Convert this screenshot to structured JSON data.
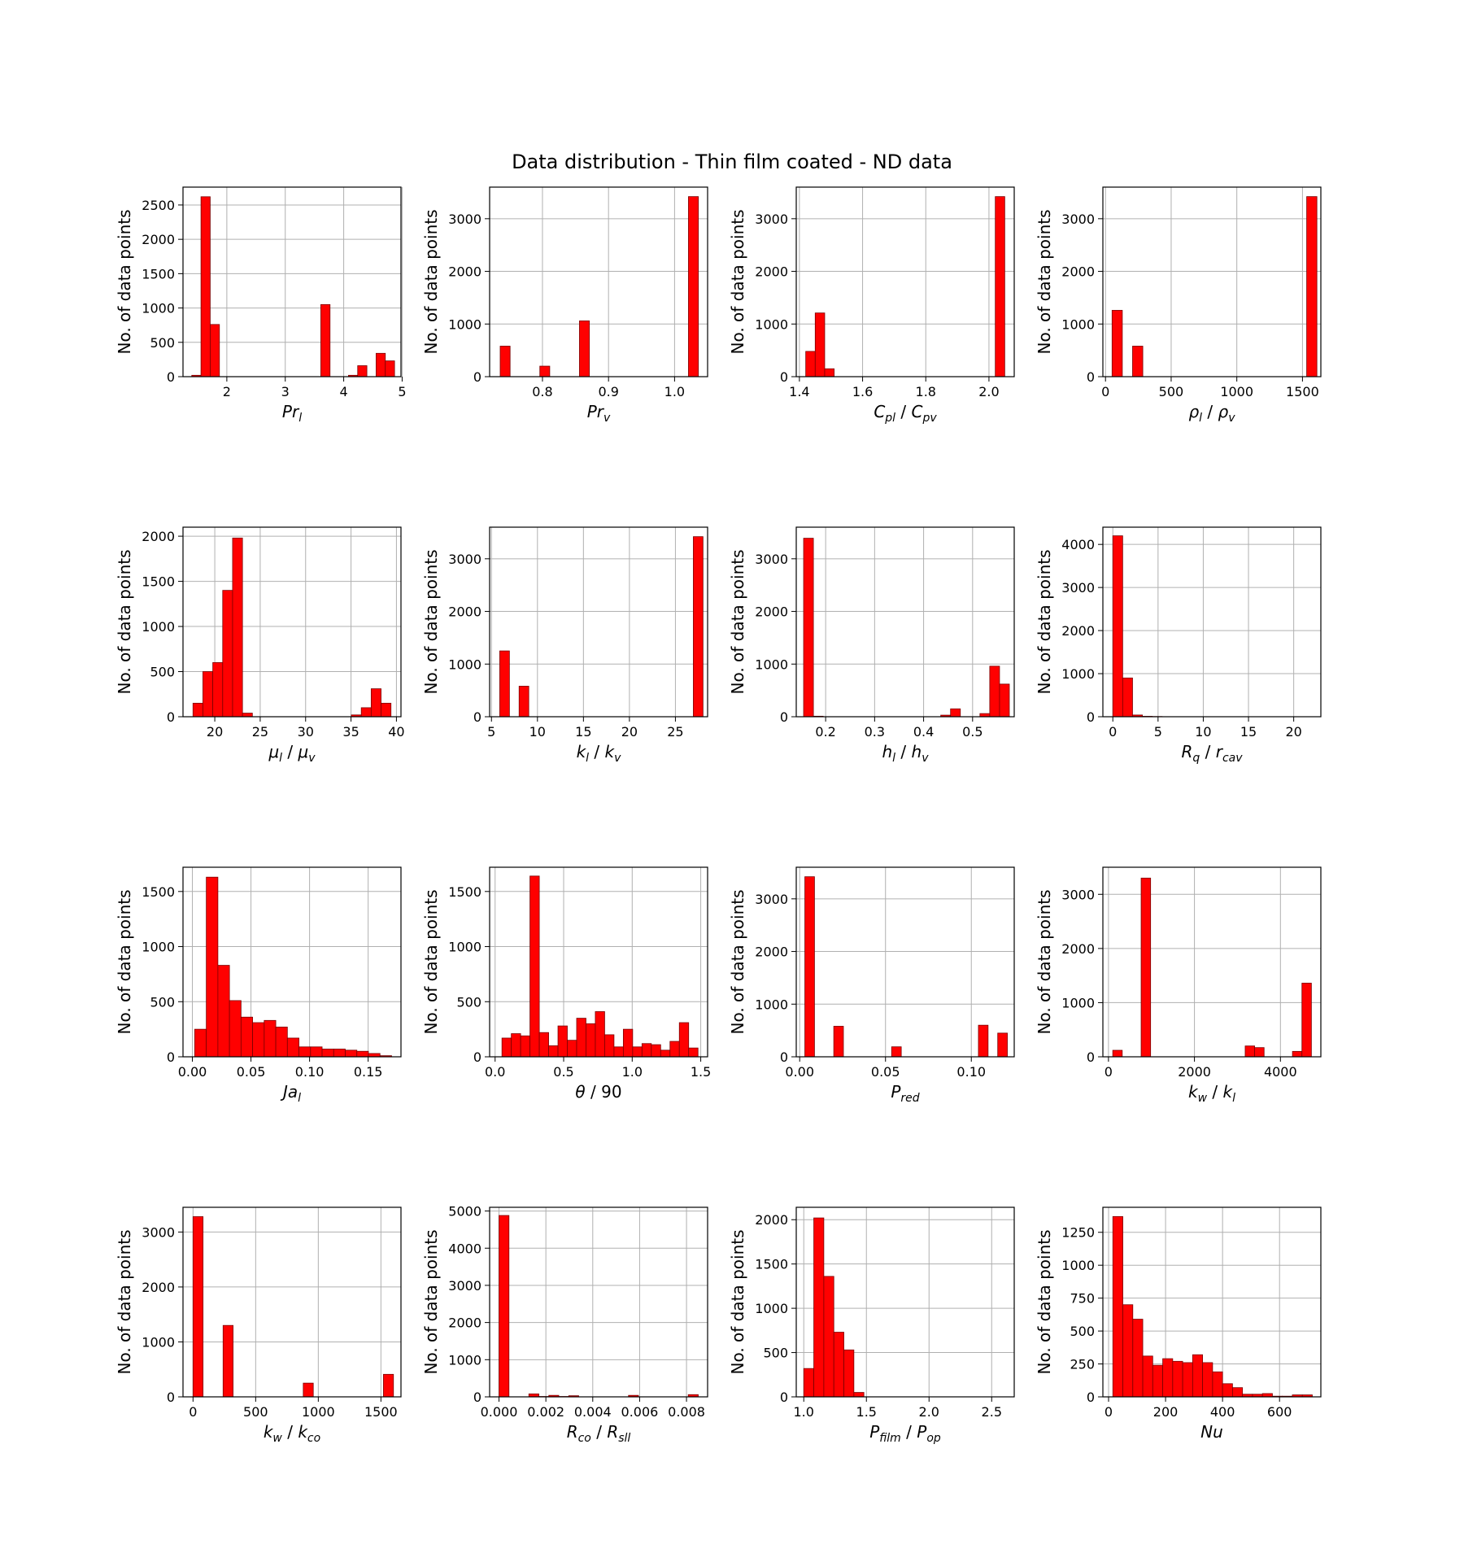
{
  "figure": {
    "title": "Data distribution - Thin film coated - ND data"
  },
  "style": {
    "bar_color": "#ff0000",
    "edge_color": "#7a0000",
    "grid_color": "#b0b0b0"
  },
  "chart_data": [
    {
      "type": "bar",
      "xlabel": {
        "main": "Pr",
        "sub": "l"
      },
      "ylabel": "No. of data points",
      "xlim": [
        1.25,
        4.98
      ],
      "ylim": [
        0,
        2760
      ],
      "xticks": [
        2,
        3,
        4,
        5
      ],
      "xtick_labels": [
        "2",
        "3",
        "4",
        "5"
      ],
      "yticks": [
        0,
        500,
        1000,
        1500,
        2000,
        2500
      ],
      "ytick_labels": [
        "0",
        "500",
        "1000",
        "1500",
        "2000",
        "2500"
      ],
      "bins": [
        1.4,
        4.87
      ],
      "counts": [
        20,
        2620,
        760,
        0,
        0,
        0,
        0,
        0,
        0,
        0,
        0,
        0,
        0,
        0,
        1050,
        0,
        0,
        20,
        160,
        0,
        340,
        230
      ],
      "grid": true
    },
    {
      "type": "bar",
      "xlabel": {
        "main": "Pr",
        "sub": "v"
      },
      "ylabel": "No. of data points",
      "xlim": [
        0.72,
        1.05
      ],
      "ylim": [
        0,
        3600
      ],
      "xticks": [
        0.8,
        0.9,
        1.0
      ],
      "xtick_labels": [
        "0.8",
        "0.9",
        "1.0"
      ],
      "yticks": [
        0,
        1000,
        2000,
        3000
      ],
      "ytick_labels": [
        "0",
        "1000",
        "2000",
        "3000"
      ],
      "bins": [
        0.736,
        1.036
      ],
      "counts": [
        580,
        0,
        0,
        0,
        200,
        0,
        0,
        0,
        1060,
        0,
        0,
        0,
        0,
        0,
        0,
        0,
        0,
        0,
        0,
        3420
      ],
      "grid": true
    },
    {
      "type": "bar",
      "xlabel": {
        "main": "C",
        "sub": "pl",
        "main2": "C",
        "sub2": "pv"
      },
      "ylabel": "No. of data points",
      "xlim": [
        1.39,
        2.08
      ],
      "ylim": [
        0,
        3600
      ],
      "xticks": [
        1.4,
        1.6,
        1.8,
        2.0
      ],
      "xtick_labels": [
        "1.4",
        "1.6",
        "1.8",
        "2.0"
      ],
      "yticks": [
        0,
        1000,
        2000,
        3000
      ],
      "ytick_labels": [
        "0",
        "1000",
        "2000",
        "3000"
      ],
      "bins": [
        1.42,
        2.05
      ],
      "counts": [
        480,
        1210,
        150,
        0,
        0,
        0,
        0,
        0,
        0,
        0,
        0,
        0,
        0,
        0,
        0,
        0,
        0,
        0,
        0,
        0,
        3420
      ],
      "grid": true
    },
    {
      "type": "bar",
      "xlabel": {
        "main": "ρ",
        "sub": "l",
        "main2": "ρ",
        "sub2": "v"
      },
      "ylabel": "No. of data points",
      "xlim": [
        -20,
        1640
      ],
      "ylim": [
        0,
        3600
      ],
      "xticks": [
        0,
        500,
        1000,
        1500
      ],
      "xtick_labels": [
        "0",
        "500",
        "1000",
        "1500"
      ],
      "yticks": [
        0,
        1000,
        2000,
        3000
      ],
      "ytick_labels": [
        "0",
        "1000",
        "2000",
        "3000"
      ],
      "bins": [
        50,
        1610
      ],
      "counts": [
        1260,
        0,
        580,
        0,
        0,
        0,
        0,
        0,
        0,
        0,
        0,
        0,
        0,
        0,
        0,
        0,
        0,
        0,
        0,
        3420
      ],
      "grid": true
    },
    {
      "type": "bar",
      "xlabel": {
        "main": "μ",
        "sub": "l",
        "main2": "μ",
        "sub2": "v"
      },
      "ylabel": "No. of data points",
      "xlim": [
        16.5,
        40.5
      ],
      "ylim": [
        0,
        2100
      ],
      "xticks": [
        20,
        25,
        30,
        35,
        40
      ],
      "xtick_labels": [
        "20",
        "25",
        "30",
        "35",
        "40"
      ],
      "yticks": [
        0,
        500,
        1000,
        1500,
        2000
      ],
      "ytick_labels": [
        "0",
        "500",
        "1000",
        "1500",
        "2000"
      ],
      "bins": [
        17.6,
        39.4
      ],
      "counts": [
        150,
        500,
        600,
        1400,
        1980,
        40,
        0,
        0,
        0,
        0,
        0,
        0,
        0,
        0,
        0,
        0,
        20,
        100,
        310,
        150
      ],
      "grid": true
    },
    {
      "type": "bar",
      "xlabel": {
        "main": "k",
        "sub": "l",
        "main2": "k",
        "sub2": "v"
      },
      "ylabel": "No. of data points",
      "xlim": [
        4.8,
        28.5
      ],
      "ylim": [
        0,
        3600
      ],
      "xticks": [
        5,
        10,
        15,
        20,
        25
      ],
      "xtick_labels": [
        "5",
        "10",
        "15",
        "20",
        "25"
      ],
      "yticks": [
        0,
        1000,
        2000,
        3000
      ],
      "ytick_labels": [
        "0",
        "1000",
        "2000",
        "3000"
      ],
      "bins": [
        5.9,
        28.0
      ],
      "counts": [
        1250,
        0,
        580,
        0,
        0,
        0,
        0,
        0,
        0,
        0,
        0,
        0,
        0,
        0,
        0,
        0,
        0,
        0,
        0,
        0,
        3420
      ],
      "grid": true
    },
    {
      "type": "bar",
      "xlabel": {
        "main": "h",
        "sub": "l",
        "main2": "h",
        "sub2": "v"
      },
      "ylabel": "No. of data points",
      "xlim": [
        0.14,
        0.585
      ],
      "ylim": [
        0,
        3600
      ],
      "xticks": [
        0.2,
        0.3,
        0.4,
        0.5
      ],
      "xtick_labels": [
        "0.2",
        "0.3",
        "0.4",
        "0.5"
      ],
      "yticks": [
        0,
        1000,
        2000,
        3000
      ],
      "ytick_labels": [
        "0",
        "1000",
        "2000",
        "3000"
      ],
      "bins": [
        0.155,
        0.575
      ],
      "counts": [
        3390,
        10,
        0,
        0,
        0,
        0,
        0,
        0,
        0,
        0,
        0,
        0,
        0,
        0,
        30,
        150,
        0,
        0,
        60,
        960,
        620
      ],
      "grid": true
    },
    {
      "type": "bar",
      "xlabel": {
        "main": "R",
        "sub": "q",
        "main2": "r",
        "sub2": "cav"
      },
      "ylabel": "No. of data points",
      "xlim": [
        -1.1,
        23.0
      ],
      "ylim": [
        0,
        4400
      ],
      "xticks": [
        0,
        5,
        10,
        15,
        20
      ],
      "xtick_labels": [
        "0",
        "5",
        "10",
        "15",
        "20"
      ],
      "yticks": [
        0,
        1000,
        2000,
        3000,
        4000
      ],
      "ytick_labels": [
        "0",
        "1000",
        "2000",
        "3000",
        "4000"
      ],
      "bins": [
        0,
        21.8
      ],
      "counts": [
        4200,
        900,
        40,
        10,
        5,
        0,
        0,
        0,
        0,
        0,
        0,
        0,
        0,
        0,
        0,
        0,
        0,
        0,
        0,
        0
      ],
      "grid": true
    },
    {
      "type": "bar",
      "xlabel": {
        "main": "Ja",
        "sub": "l"
      },
      "ylabel": "No. of data points",
      "xlim": [
        -0.008,
        0.178
      ],
      "ylim": [
        0,
        1720
      ],
      "xticks": [
        0.0,
        0.05,
        0.1,
        0.15
      ],
      "xtick_labels": [
        "0.00",
        "0.05",
        "0.10",
        "0.15"
      ],
      "yticks": [
        0,
        500,
        1000,
        1500
      ],
      "ytick_labels": [
        "0",
        "500",
        "1000",
        "1500"
      ],
      "bins": [
        0.002,
        0.17
      ],
      "counts": [
        250,
        1630,
        830,
        510,
        360,
        310,
        330,
        270,
        170,
        90,
        90,
        70,
        70,
        60,
        50,
        30,
        10
      ],
      "grid": true
    },
    {
      "type": "bar",
      "xlabel": {
        "main": "θ",
        "main2": "90",
        "italic2": false
      },
      "ylabel": "No. of data points",
      "xlim": [
        -0.04,
        1.55
      ],
      "ylim": [
        0,
        1720
      ],
      "xticks": [
        0.0,
        0.5,
        1.0,
        1.5
      ],
      "xtick_labels": [
        "0.0",
        "0.5",
        "1.0",
        "1.5"
      ],
      "yticks": [
        0,
        500,
        1000,
        1500
      ],
      "ytick_labels": [
        "0",
        "500",
        "1000",
        "1500"
      ],
      "bins": [
        0.05,
        1.48
      ],
      "counts": [
        170,
        210,
        190,
        1640,
        220,
        100,
        280,
        150,
        350,
        300,
        410,
        200,
        90,
        250,
        90,
        120,
        110,
        60,
        140,
        310,
        80
      ],
      "grid": true
    },
    {
      "type": "bar",
      "xlabel": {
        "main": "P",
        "sub": "red"
      },
      "ylabel": "No. of data points",
      "xlim": [
        -0.002,
        0.125
      ],
      "ylim": [
        0,
        3600
      ],
      "xticks": [
        0.0,
        0.05,
        0.1
      ],
      "xtick_labels": [
        "0.00",
        "0.05",
        "0.10"
      ],
      "yticks": [
        0,
        1000,
        2000,
        3000
      ],
      "ytick_labels": [
        "0",
        "1000",
        "2000",
        "3000"
      ],
      "bins": [
        0.003,
        0.121
      ],
      "counts": [
        3420,
        0,
        0,
        580,
        0,
        0,
        0,
        0,
        0,
        190,
        0,
        0,
        0,
        0,
        0,
        0,
        0,
        0,
        600,
        0,
        450
      ],
      "grid": true
    },
    {
      "type": "bar",
      "xlabel": {
        "main": "k",
        "sub": "w",
        "main2": "k",
        "sub2": "l"
      },
      "ylabel": "No. of data points",
      "xlim": [
        -130,
        4940
      ],
      "ylim": [
        0,
        3500
      ],
      "xticks": [
        0,
        2000,
        4000
      ],
      "xtick_labels": [
        "0",
        "2000",
        "4000"
      ],
      "yticks": [
        0,
        1000,
        2000,
        3000
      ],
      "ytick_labels": [
        "0",
        "1000",
        "2000",
        "3000"
      ],
      "bins": [
        100,
        4720
      ],
      "counts": [
        120,
        0,
        0,
        3300,
        0,
        0,
        0,
        0,
        0,
        0,
        0,
        0,
        0,
        0,
        200,
        170,
        0,
        0,
        0,
        100,
        1360
      ],
      "grid": true
    },
    {
      "type": "bar",
      "xlabel": {
        "main": "k",
        "sub": "w",
        "main2": "k",
        "sub2": "co"
      },
      "ylabel": "No. of data points",
      "xlim": [
        -80,
        1660
      ],
      "ylim": [
        0,
        3450
      ],
      "xticks": [
        0,
        500,
        1000,
        1500
      ],
      "xtick_labels": [
        "0",
        "500",
        "1000",
        "1500"
      ],
      "yticks": [
        0,
        1000,
        2000,
        3000
      ],
      "ytick_labels": [
        "0",
        "1000",
        "2000",
        "3000"
      ],
      "bins": [
        0,
        1600
      ],
      "counts": [
        3280,
        0,
        0,
        1300,
        0,
        0,
        0,
        0,
        0,
        0,
        0,
        250,
        0,
        0,
        0,
        0,
        0,
        0,
        0,
        410
      ],
      "grid": true
    },
    {
      "type": "bar",
      "xlabel": {
        "main": "R",
        "sub": "co",
        "main2": "R",
        "sub2": "sll"
      },
      "ylabel": "No. of data points",
      "xlim": [
        -0.0004,
        0.0089
      ],
      "ylim": [
        0,
        5100
      ],
      "xticks": [
        0.0,
        0.002,
        0.004,
        0.006,
        0.008
      ],
      "xtick_labels": [
        "0.000",
        "0.002",
        "0.004",
        "0.006",
        "0.008"
      ],
      "yticks": [
        0,
        1000,
        2000,
        3000,
        4000,
        5000
      ],
      "ytick_labels": [
        "0",
        "1000",
        "2000",
        "3000",
        "4000",
        "5000"
      ],
      "bins": [
        0,
        0.0085
      ],
      "counts": [
        4880,
        0,
        0,
        80,
        10,
        40,
        10,
        30,
        0,
        0,
        0,
        0,
        0,
        40,
        0,
        0,
        0,
        0,
        0,
        60
      ],
      "grid": true
    },
    {
      "type": "bar",
      "xlabel": {
        "main": "P",
        "sub": "film",
        "main2": "P",
        "sub2": "op"
      },
      "ylabel": "No. of data points",
      "xlim": [
        0.94,
        2.68
      ],
      "ylim": [
        0,
        2140
      ],
      "xticks": [
        1.0,
        1.5,
        2.0,
        2.5
      ],
      "xtick_labels": [
        "1.0",
        "1.5",
        "2.0",
        "2.5"
      ],
      "yticks": [
        0,
        500,
        1000,
        1500,
        2000
      ],
      "ytick_labels": [
        "0",
        "500",
        "1000",
        "1500",
        "2000"
      ],
      "bins": [
        1.0,
        1.56
      ],
      "counts": [
        320,
        2020,
        1360,
        730,
        530,
        50,
        0
      ],
      "grid": true
    },
    {
      "type": "bar",
      "xlabel": {
        "main": "Nu"
      },
      "ylabel": "No. of data points",
      "xlim": [
        -20,
        745
      ],
      "ylim": [
        0,
        1440
      ],
      "xticks": [
        0,
        200,
        400,
        600
      ],
      "xtick_labels": [
        "0",
        "200",
        "400",
        "600"
      ],
      "yticks": [
        0,
        250,
        500,
        750,
        1000,
        1250
      ],
      "ytick_labels": [
        "0",
        "250",
        "500",
        "750",
        "1000",
        "1250"
      ],
      "bins": [
        15,
        715
      ],
      "counts": [
        1370,
        700,
        590,
        310,
        240,
        290,
        270,
        260,
        320,
        260,
        190,
        100,
        70,
        20,
        20,
        25,
        5,
        5,
        15,
        15
      ],
      "grid": true
    }
  ]
}
